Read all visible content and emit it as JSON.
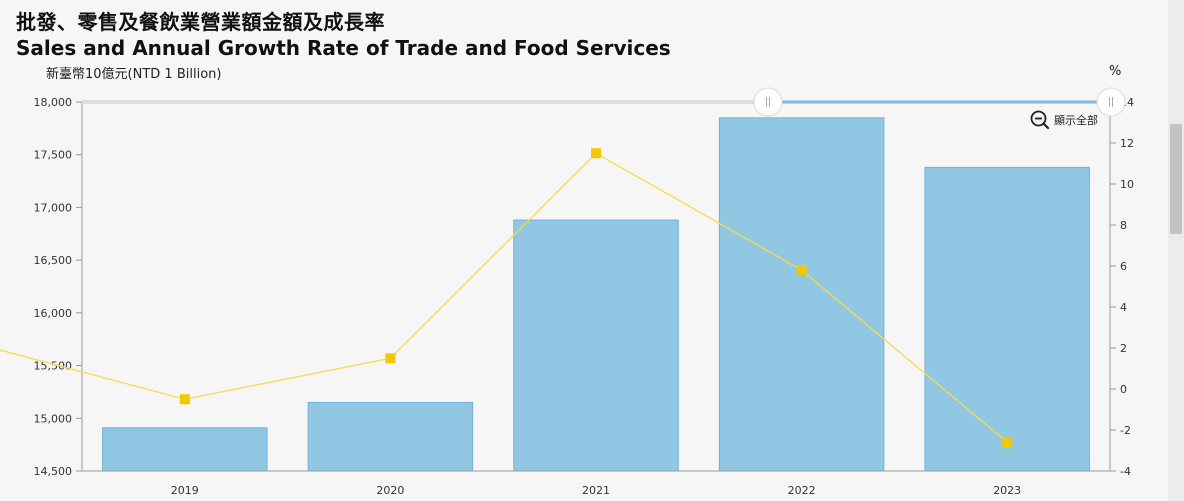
{
  "title": {
    "zh": "批發、零售及餐飲業營業額金額及成長率",
    "en": "Sales and Annual Growth Rate of Trade and Food Services"
  },
  "units": {
    "left": "新臺幣10億元(NTD 1 Billion)",
    "right": "%"
  },
  "controls": {
    "show_all_label": "顯示全部",
    "show_all_icon": "zoom-out-icon",
    "slider_handle_icon": "grip-icon"
  },
  "colors": {
    "bar_fill": "#92c7e3",
    "bar_stroke": "#6fb3d7",
    "line": "#f5dc4a",
    "marker": "#f2c800",
    "range_bar": "#7fb8dc"
  },
  "chart_data": {
    "type": "bar",
    "categories": [
      "2019",
      "2020",
      "2021",
      "2022",
      "2023"
    ],
    "series": [
      {
        "type": "bar",
        "axis": "left",
        "values": [
          14910,
          15150,
          16880,
          17850,
          17380
        ]
      },
      {
        "type": "line",
        "axis": "right",
        "values": [
          -0.5,
          1.5,
          11.5,
          5.8,
          -2.6
        ],
        "line_start_value": 1.9
      }
    ],
    "y_left": {
      "min": 14500,
      "max": 18000,
      "ticks": [
        14500,
        15000,
        15500,
        16000,
        16500,
        17000,
        17500,
        18000
      ],
      "tick_labels": [
        "14,500",
        "15,000",
        "15,500",
        "16,000",
        "16,500",
        "17,000",
        "17,500",
        "18,000"
      ]
    },
    "y_right": {
      "min": -4,
      "max": 14,
      "ticks": [
        -4,
        -2,
        0,
        2,
        4,
        6,
        8,
        10,
        12,
        14
      ],
      "tick_labels": [
        "-4",
        "-2",
        "0",
        "2",
        "4",
        "6",
        "8",
        "10",
        "12",
        "14"
      ]
    },
    "grid": false,
    "legend": "none"
  }
}
